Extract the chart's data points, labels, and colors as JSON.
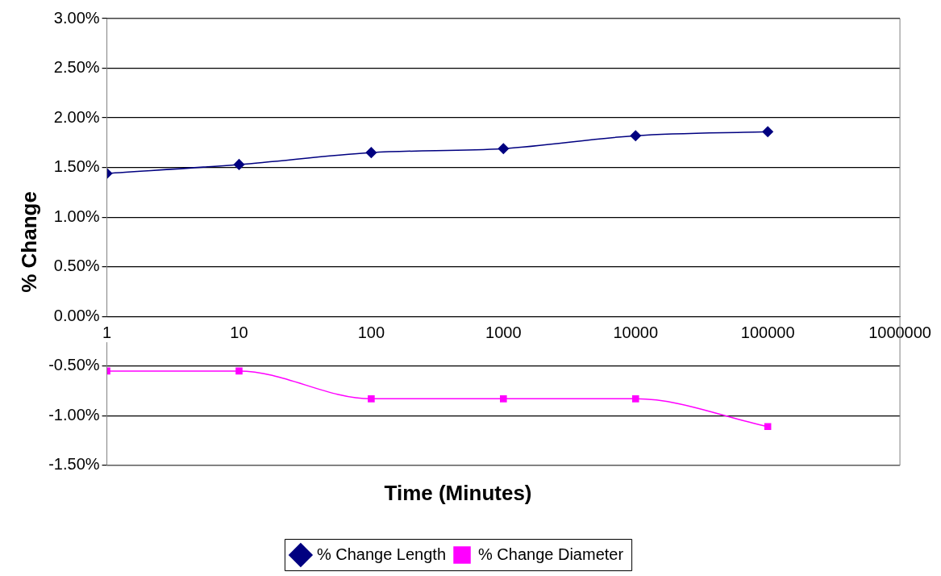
{
  "chart_data": {
    "type": "line",
    "xlabel": "Time (Minutes)",
    "ylabel": "% Change",
    "x": [
      1,
      10,
      100,
      1000,
      10000,
      100000
    ],
    "series": [
      {
        "name": "% Change Length",
        "color": "#000080",
        "marker": "diamond",
        "values": [
          1.44,
          1.53,
          1.65,
          1.69,
          1.82,
          1.86
        ]
      },
      {
        "name": "% Change Diameter",
        "color": "#ff00ff",
        "marker": "square",
        "values": [
          -0.55,
          -0.55,
          -0.83,
          -0.83,
          -0.83,
          -1.11
        ]
      }
    ],
    "xlim": [
      1,
      1000000
    ],
    "xticks": [
      1,
      10,
      100,
      1000,
      10000,
      100000,
      1000000
    ],
    "log": "x",
    "ylim": [
      -1.5,
      3
    ],
    "yticks": [
      {
        "value": -1.5,
        "label": "-1.50%"
      },
      {
        "value": -1,
        "label": "-1.00%"
      },
      {
        "value": -0.5,
        "label": "-0.50%"
      },
      {
        "value": 0,
        "label": "0.00%"
      },
      {
        "value": 0.5,
        "label": "0.50%"
      },
      {
        "value": 1,
        "label": "1.00%"
      },
      {
        "value": 1.5,
        "label": "1.50%"
      },
      {
        "value": 2,
        "label": "2.00%"
      },
      {
        "value": 2.5,
        "label": "2.50%"
      },
      {
        "value": 3,
        "label": "3.00%"
      }
    ],
    "grid": "y",
    "legend": "bottom"
  }
}
